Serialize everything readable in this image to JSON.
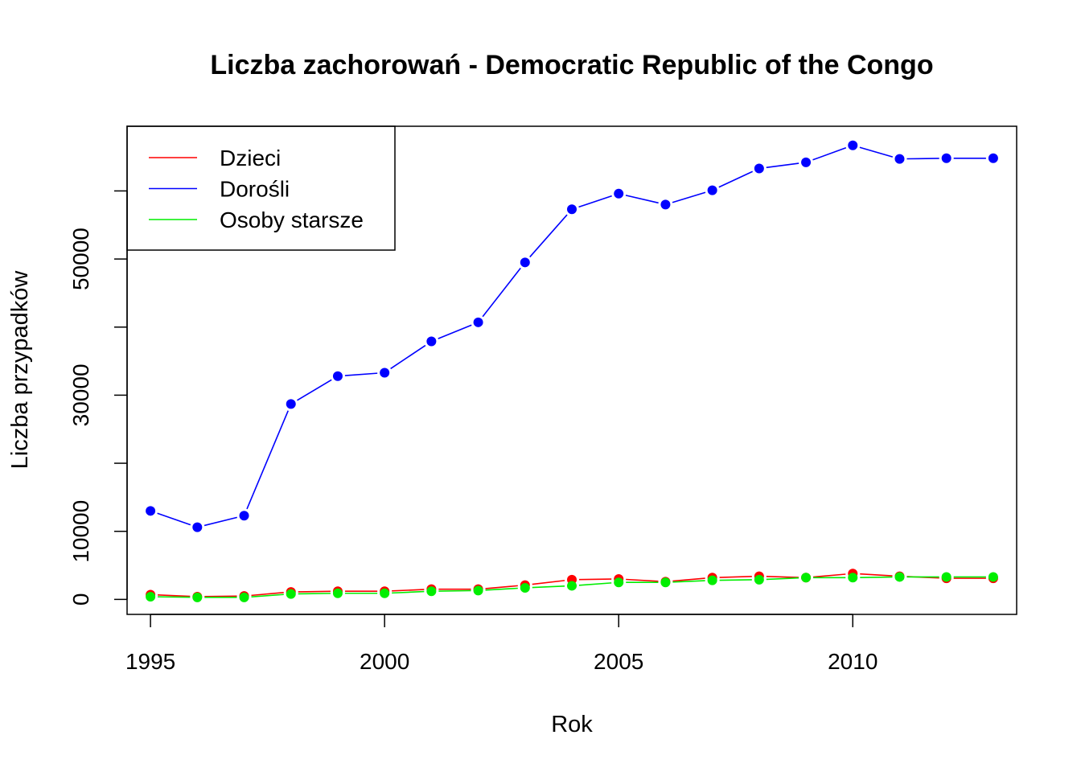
{
  "chart_data": {
    "type": "line",
    "title": "Liczba zachorowań -  Democratic Republic of the Congo",
    "xlabel": "Rok",
    "ylabel": "Liczba przypadków",
    "xlim": [
      1994.5,
      2013.5
    ],
    "ylim": [
      -2200,
      69500
    ],
    "x_ticks": [
      1995,
      2000,
      2005,
      2010
    ],
    "y_ticks": [
      0,
      10000,
      20000,
      30000,
      40000,
      50000,
      60000
    ],
    "y_tick_labels": [
      {
        "value": 0,
        "label": "0"
      },
      {
        "value": 10000,
        "label": "10000"
      },
      {
        "value": 30000,
        "label": "30000"
      },
      {
        "value": 50000,
        "label": "50000"
      }
    ],
    "grid": false,
    "legend_position": "top-left",
    "x": [
      1995,
      1996,
      1997,
      1998,
      1999,
      2000,
      2001,
      2002,
      2003,
      2004,
      2005,
      2006,
      2007,
      2008,
      2009,
      2010,
      2011,
      2012,
      2013
    ],
    "series": [
      {
        "name": "Dzieci",
        "color": "#ff0000",
        "values": [
          700,
          400,
          500,
          1100,
          1200,
          1200,
          1500,
          1500,
          2100,
          2900,
          3000,
          2600,
          3200,
          3400,
          3200,
          3800,
          3400,
          3100,
          3100
        ]
      },
      {
        "name": "Dorośli",
        "color": "#0000ff",
        "values": [
          13000,
          10600,
          12300,
          28700,
          32800,
          33300,
          37900,
          40700,
          49500,
          57300,
          59600,
          58000,
          60100,
          63300,
          64200,
          66700,
          64700,
          64800,
          64800
        ]
      },
      {
        "name": "Osoby starsze",
        "color": "#00ee00",
        "values": [
          400,
          300,
          300,
          800,
          900,
          900,
          1200,
          1300,
          1700,
          2000,
          2500,
          2500,
          2800,
          2900,
          3200,
          3200,
          3300,
          3300,
          3300
        ]
      }
    ]
  }
}
